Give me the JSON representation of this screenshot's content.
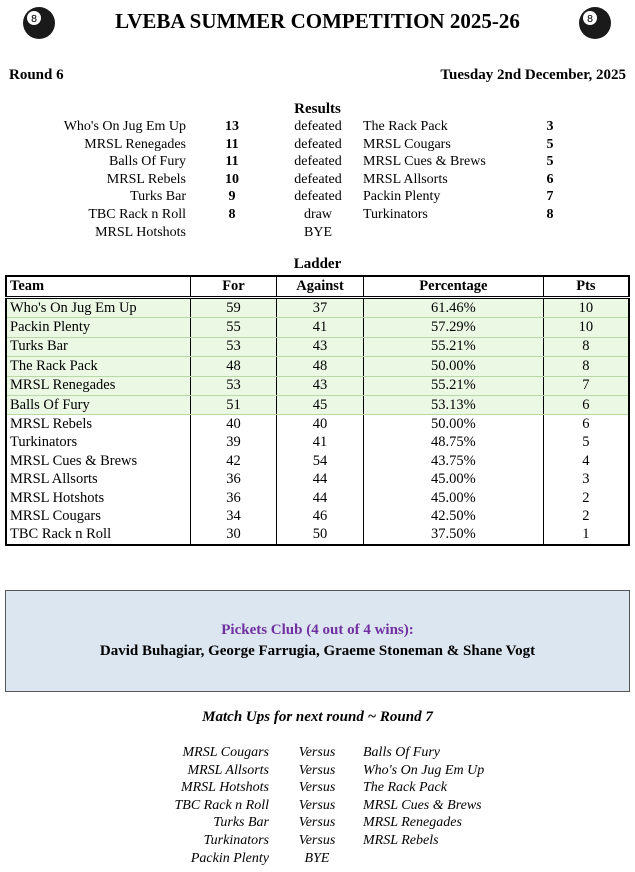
{
  "header": {
    "title": "LVEBA SUMMER COMPETITION 2025-26",
    "round": "Round 6",
    "date": "Tuesday 2nd December, 2025"
  },
  "results": {
    "title": "Results",
    "rows": [
      {
        "team": "Who's On Jug Em Up",
        "score": 13,
        "result": "defeated",
        "opponent": "The Rack Pack",
        "opponent_score": 3
      },
      {
        "team": "MRSL Renegades",
        "score": 11,
        "result": "defeated",
        "opponent": "MRSL Cougars",
        "opponent_score": 5
      },
      {
        "team": "Balls Of Fury",
        "score": 11,
        "result": "defeated",
        "opponent": "MRSL Cues & Brews",
        "opponent_score": 5
      },
      {
        "team": "MRSL Rebels",
        "score": 10,
        "result": "defeated",
        "opponent": "MRSL Allsorts",
        "opponent_score": 6
      },
      {
        "team": "Turks Bar",
        "score": 9,
        "result": "defeated",
        "opponent": "Packin Plenty",
        "opponent_score": 7
      },
      {
        "team": "TBC Rack n Roll",
        "score": 8,
        "result": "draw",
        "opponent": "Turkinators",
        "opponent_score": 8
      },
      {
        "team": "MRSL Hotshots",
        "result": "BYE"
      }
    ]
  },
  "ladder": {
    "title": "Ladder",
    "columns": [
      "Team",
      "For",
      "Against",
      "Percentage",
      "Pts"
    ],
    "rows": [
      [
        "Who's On Jug Em Up",
        59,
        37,
        "61.46%",
        10
      ],
      [
        "Packin Plenty",
        55,
        41,
        "57.29%",
        10
      ],
      [
        "Turks Bar",
        53,
        43,
        "55.21%",
        8
      ],
      [
        "The Rack Pack",
        48,
        48,
        "50.00%",
        8
      ],
      [
        "MRSL Renegades",
        53,
        43,
        "55.21%",
        7
      ],
      [
        "Balls Of Fury",
        51,
        45,
        "53.13%",
        6
      ],
      [
        "MRSL Rebels",
        40,
        40,
        "50.00%",
        6
      ],
      [
        "Turkinators",
        39,
        41,
        "48.75%",
        5
      ],
      [
        "MRSL Cues & Brews",
        42,
        54,
        "43.75%",
        4
      ],
      [
        "MRSL Allsorts",
        36,
        44,
        "45.00%",
        3
      ],
      [
        "MRSL Hotshots",
        36,
        44,
        "45.00%",
        2
      ],
      [
        "MRSL Cougars",
        34,
        46,
        "42.50%",
        2
      ],
      [
        "TBC Rack n Roll",
        30,
        50,
        "37.50%",
        1
      ]
    ]
  },
  "pickets": {
    "title": "Pickets Club (4 out of 4 wins):",
    "names": "David Buhagiar, George Farrugia, Graeme Stoneman & Shane Vogt"
  },
  "next_round": {
    "title": "Match Ups for next round ~ Round 7",
    "rows": [
      {
        "team": "MRSL Cougars",
        "versus": "Versus",
        "opponent": "Balls Of Fury"
      },
      {
        "team": "MRSL Allsorts",
        "versus": "Versus",
        "opponent": "Who's On Jug Em Up"
      },
      {
        "team": "MRSL Hotshots",
        "versus": "Versus",
        "opponent": "The Rack Pack"
      },
      {
        "team": "TBC Rack n Roll",
        "versus": "Versus",
        "opponent": "MRSL Cues & Brews"
      },
      {
        "team": "Turks Bar",
        "versus": "Versus",
        "opponent": "MRSL Renegades"
      },
      {
        "team": "Turkinators",
        "versus": "Versus",
        "opponent": "MRSL Rebels"
      },
      {
        "team": "Packin Plenty",
        "versus": "BYE"
      }
    ]
  }
}
